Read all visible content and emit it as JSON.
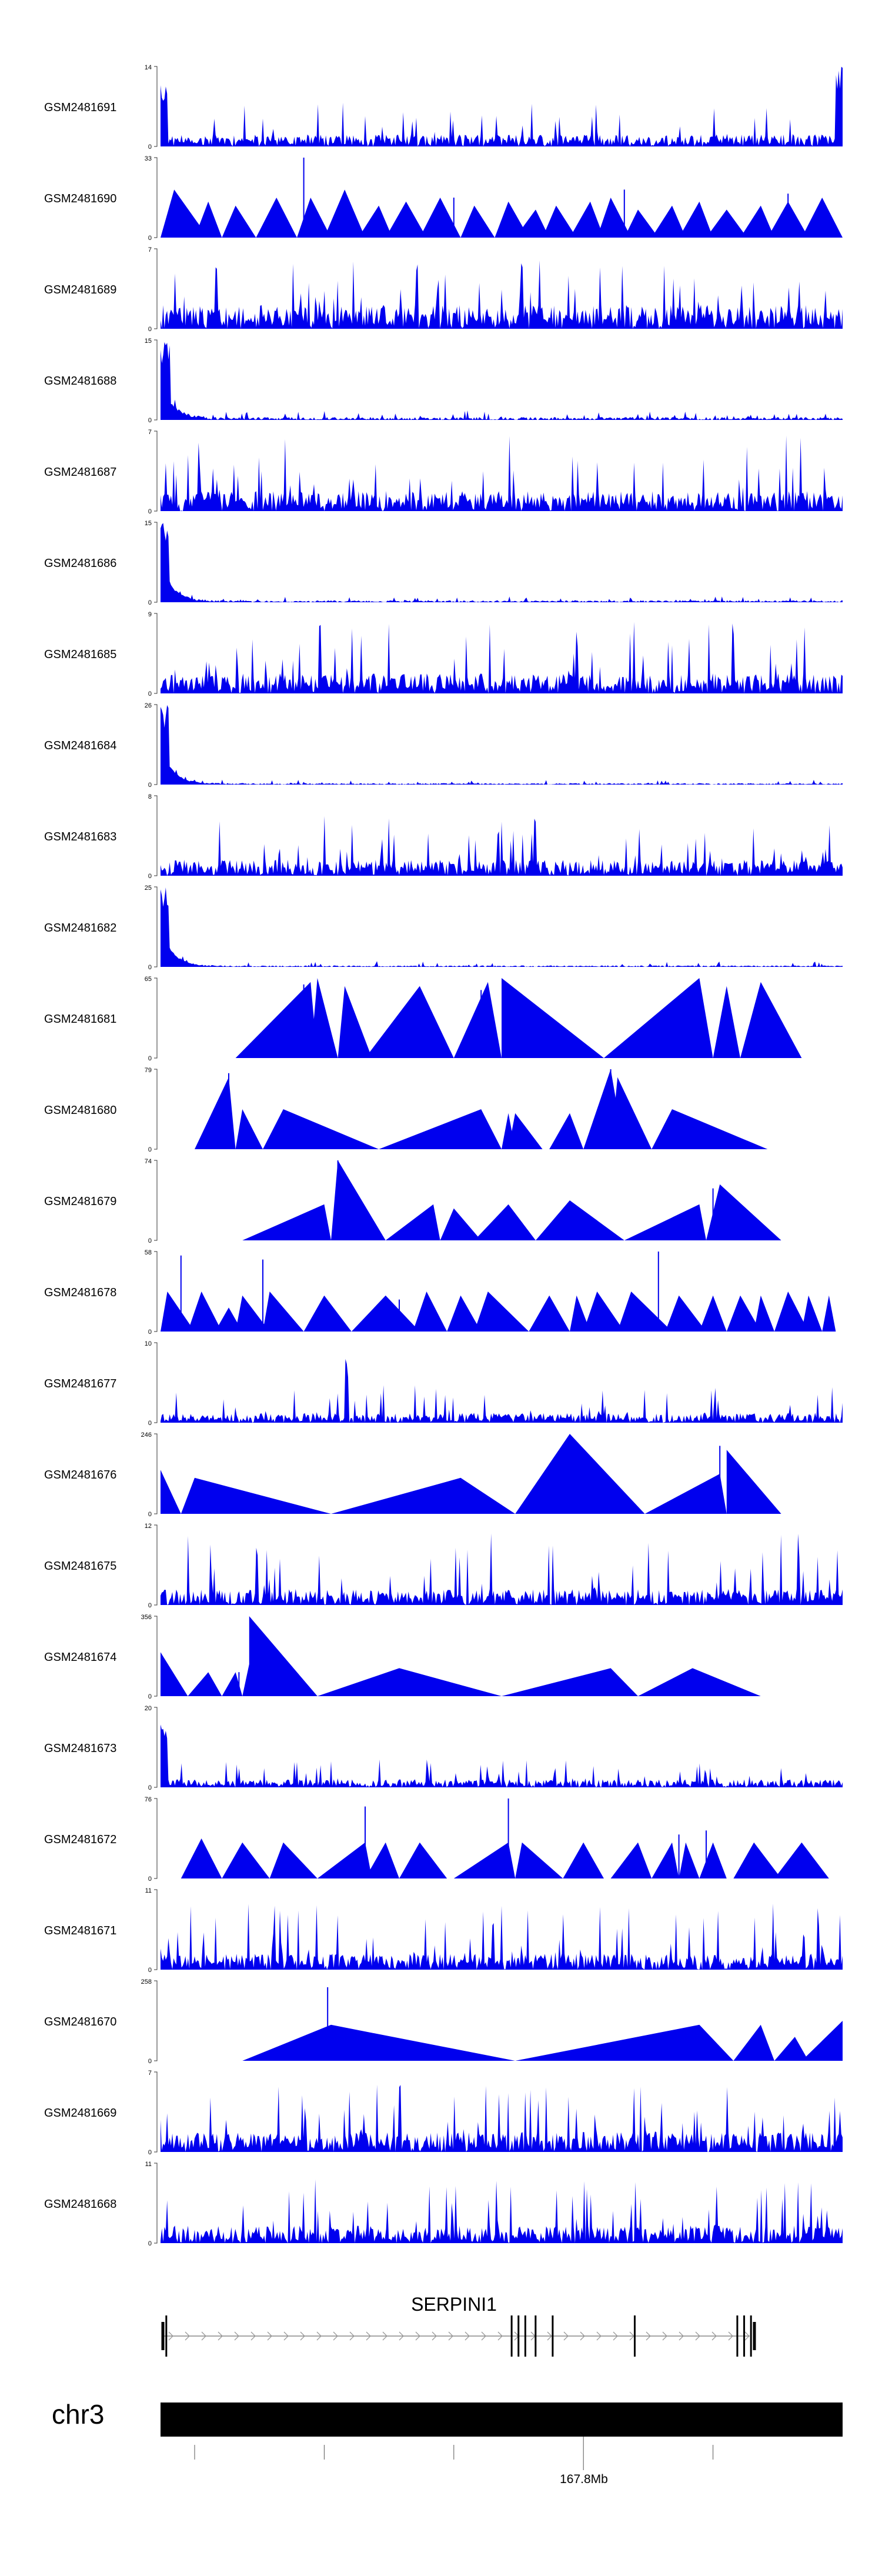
{
  "chart_data": {
    "type": "area",
    "title": "",
    "xlabel": "",
    "ylabel": "",
    "fill_color": "#0000ee",
    "tracks": [
      {
        "name": "GSM2481691",
        "ymax": 14,
        "profile": "dense",
        "seed": 11,
        "base": 0.15,
        "spike": 0.55,
        "edges": [
          [
            0.0,
            0.01,
            0.8
          ],
          [
            0.99,
            1.0,
            1.0
          ]
        ]
      },
      {
        "name": "GSM2481690",
        "ymax": 33,
        "profile": "tri",
        "seed": 12,
        "peaks": [
          [
            0.0,
            0.02,
            0.07,
            0.6
          ],
          [
            0.05,
            0.07,
            0.09,
            0.45
          ],
          [
            0.09,
            0.11,
            0.14,
            0.4
          ],
          [
            0.14,
            0.17,
            0.2,
            0.5
          ],
          [
            0.2,
            0.22,
            0.25,
            0.5
          ],
          [
            0.24,
            0.27,
            0.3,
            0.6
          ],
          [
            0.29,
            0.32,
            0.34,
            0.4
          ],
          [
            0.33,
            0.36,
            0.39,
            0.45
          ],
          [
            0.38,
            0.41,
            0.44,
            0.5
          ],
          [
            0.44,
            0.46,
            0.49,
            0.4
          ],
          [
            0.49,
            0.51,
            0.54,
            0.45
          ],
          [
            0.52,
            0.55,
            0.57,
            0.35
          ],
          [
            0.56,
            0.58,
            0.61,
            0.4
          ],
          [
            0.6,
            0.63,
            0.65,
            0.45
          ],
          [
            0.64,
            0.66,
            0.69,
            0.5
          ],
          [
            0.68,
            0.7,
            0.73,
            0.35
          ],
          [
            0.72,
            0.75,
            0.77,
            0.4
          ],
          [
            0.76,
            0.79,
            0.81,
            0.45
          ],
          [
            0.8,
            0.83,
            0.86,
            0.35
          ],
          [
            0.85,
            0.88,
            0.9,
            0.4
          ],
          [
            0.89,
            0.92,
            0.95,
            0.45
          ],
          [
            0.94,
            0.97,
            1.0,
            0.5
          ]
        ],
        "spikes": [
          [
            0.21,
            1.0
          ],
          [
            0.43,
            0.5
          ],
          [
            0.68,
            0.6
          ],
          [
            0.92,
            0.55
          ]
        ]
      },
      {
        "name": "GSM2481689",
        "ymax": 7,
        "profile": "dense",
        "seed": 13,
        "base": 0.3,
        "spike": 0.9,
        "edges": []
      },
      {
        "name": "GSM2481688",
        "ymax": 15,
        "profile": "decay",
        "seed": 14,
        "base": 0.06,
        "spike": 0.2,
        "edges": [
          [
            0.0,
            0.015,
            1.0
          ]
        ]
      },
      {
        "name": "GSM2481687",
        "ymax": 7,
        "profile": "dense",
        "seed": 15,
        "base": 0.25,
        "spike": 0.95,
        "edges": []
      },
      {
        "name": "GSM2481686",
        "ymax": 15,
        "profile": "decay",
        "seed": 16,
        "base": 0.04,
        "spike": 0.12,
        "edges": [
          [
            0.0,
            0.012,
            1.0
          ]
        ]
      },
      {
        "name": "GSM2481685",
        "ymax": 9,
        "profile": "dense",
        "seed": 17,
        "base": 0.25,
        "spike": 0.9,
        "edges": []
      },
      {
        "name": "GSM2481684",
        "ymax": 26,
        "profile": "decay",
        "seed": 18,
        "base": 0.03,
        "spike": 0.1,
        "edges": [
          [
            0.0,
            0.012,
            1.0
          ]
        ]
      },
      {
        "name": "GSM2481683",
        "ymax": 8,
        "profile": "dense",
        "seed": 19,
        "base": 0.2,
        "spike": 0.75,
        "edges": []
      },
      {
        "name": "GSM2481682",
        "ymax": 25,
        "profile": "decay",
        "seed": 20,
        "base": 0.03,
        "spike": 0.12,
        "edges": [
          [
            0.0,
            0.012,
            1.0
          ]
        ]
      },
      {
        "name": "GSM2481681",
        "ymax": 65,
        "profile": "tri",
        "seed": 21,
        "peaks": [
          [
            0.11,
            0.22,
            0.23,
            0.95
          ],
          [
            0.22,
            0.23,
            0.26,
            1.0
          ],
          [
            0.26,
            0.27,
            0.31,
            0.9
          ],
          [
            0.3,
            0.38,
            0.43,
            0.9
          ],
          [
            0.43,
            0.48,
            0.5,
            0.95
          ],
          [
            0.5,
            0.5,
            0.65,
            1.0
          ],
          [
            0.65,
            0.79,
            0.81,
            1.0
          ],
          [
            0.81,
            0.83,
            0.85,
            0.9
          ],
          [
            0.85,
            0.88,
            0.94,
            0.95
          ]
        ],
        "spikes": [
          [
            0.21,
            0.92
          ],
          [
            0.47,
            0.85
          ]
        ]
      },
      {
        "name": "GSM2481680",
        "ymax": 79,
        "profile": "tri",
        "seed": 22,
        "peaks": [
          [
            0.05,
            0.1,
            0.11,
            0.9
          ],
          [
            0.11,
            0.12,
            0.15,
            0.5
          ],
          [
            0.15,
            0.18,
            0.32,
            0.5
          ],
          [
            0.32,
            0.47,
            0.5,
            0.5
          ],
          [
            0.5,
            0.51,
            0.52,
            0.45
          ],
          [
            0.51,
            0.52,
            0.56,
            0.45
          ],
          [
            0.57,
            0.6,
            0.62,
            0.45
          ],
          [
            0.62,
            0.66,
            0.68,
            1.0
          ],
          [
            0.66,
            0.67,
            0.72,
            0.9
          ],
          [
            0.72,
            0.75,
            0.89,
            0.5
          ]
        ],
        "spikes": [
          [
            0.1,
            0.95
          ],
          [
            0.66,
            1.0
          ]
        ]
      },
      {
        "name": "GSM2481679",
        "ymax": 74,
        "profile": "tri",
        "seed": 23,
        "peaks": [
          [
            0.12,
            0.24,
            0.25,
            0.45
          ],
          [
            0.25,
            0.26,
            0.33,
            1.0
          ],
          [
            0.33,
            0.4,
            0.41,
            0.45
          ],
          [
            0.41,
            0.43,
            0.47,
            0.4
          ],
          [
            0.46,
            0.51,
            0.55,
            0.45
          ],
          [
            0.55,
            0.6,
            0.68,
            0.5
          ],
          [
            0.68,
            0.79,
            0.8,
            0.45
          ],
          [
            0.8,
            0.82,
            0.91,
            0.7
          ]
        ],
        "spikes": [
          [
            0.26,
            1.0
          ],
          [
            0.81,
            0.65
          ]
        ]
      },
      {
        "name": "GSM2481678",
        "ymax": 58,
        "profile": "tri",
        "seed": 24,
        "peaks": [
          [
            0.0,
            0.01,
            0.05,
            0.5
          ],
          [
            0.04,
            0.06,
            0.09,
            0.5
          ],
          [
            0.08,
            0.1,
            0.12,
            0.3
          ],
          [
            0.11,
            0.12,
            0.16,
            0.45
          ],
          [
            0.15,
            0.16,
            0.21,
            0.5
          ],
          [
            0.21,
            0.24,
            0.28,
            0.45
          ],
          [
            0.28,
            0.33,
            0.38,
            0.45
          ],
          [
            0.37,
            0.39,
            0.42,
            0.5
          ],
          [
            0.42,
            0.44,
            0.47,
            0.45
          ],
          [
            0.46,
            0.48,
            0.54,
            0.5
          ],
          [
            0.54,
            0.57,
            0.6,
            0.45
          ],
          [
            0.6,
            0.61,
            0.63,
            0.45
          ],
          [
            0.62,
            0.64,
            0.68,
            0.5
          ],
          [
            0.67,
            0.69,
            0.75,
            0.5
          ],
          [
            0.74,
            0.76,
            0.8,
            0.45
          ],
          [
            0.79,
            0.81,
            0.83,
            0.45
          ],
          [
            0.83,
            0.85,
            0.88,
            0.45
          ],
          [
            0.87,
            0.88,
            0.9,
            0.45
          ],
          [
            0.9,
            0.92,
            0.95,
            0.5
          ],
          [
            0.94,
            0.95,
            0.97,
            0.45
          ],
          [
            0.97,
            0.98,
            0.99,
            0.45
          ]
        ],
        "spikes": [
          [
            0.03,
            0.95
          ],
          [
            0.15,
            0.9
          ],
          [
            0.35,
            0.4
          ],
          [
            0.73,
            1.0
          ]
        ]
      },
      {
        "name": "GSM2481677",
        "ymax": 10,
        "profile": "dense",
        "seed": 25,
        "base": 0.12,
        "spike": 0.5,
        "edges": [
          [
            0.27,
            0.275,
            0.8
          ]
        ]
      },
      {
        "name": "GSM2481676",
        "ymax": 246,
        "profile": "tri",
        "seed": 26,
        "peaks": [
          [
            0.0,
            0.0,
            0.03,
            0.55
          ],
          [
            0.03,
            0.05,
            0.25,
            0.45
          ],
          [
            0.25,
            0.44,
            0.52,
            0.45
          ],
          [
            0.52,
            0.6,
            0.71,
            1.0
          ],
          [
            0.71,
            0.82,
            0.83,
            0.5
          ],
          [
            0.83,
            0.83,
            0.91,
            0.8
          ]
        ],
        "spikes": [
          [
            0.82,
            0.85
          ]
        ]
      },
      {
        "name": "GSM2481675",
        "ymax": 12,
        "profile": "dense",
        "seed": 27,
        "base": 0.2,
        "spike": 0.9,
        "edges": []
      },
      {
        "name": "GSM2481674",
        "ymax": 356,
        "profile": "tri",
        "seed": 28,
        "peaks": [
          [
            0.0,
            0.0,
            0.04,
            0.55
          ],
          [
            0.04,
            0.07,
            0.09,
            0.3
          ],
          [
            0.09,
            0.11,
            0.12,
            0.3
          ],
          [
            0.12,
            0.13,
            0.14,
            0.4
          ],
          [
            0.13,
            0.13,
            0.23,
            1.0
          ],
          [
            0.23,
            0.35,
            0.5,
            0.35
          ],
          [
            0.5,
            0.66,
            0.7,
            0.35
          ],
          [
            0.7,
            0.78,
            0.88,
            0.35
          ]
        ],
        "spikes": [
          [
            0.115,
            0.3
          ]
        ]
      },
      {
        "name": "GSM2481673",
        "ymax": 20,
        "profile": "dense",
        "seed": 29,
        "base": 0.1,
        "spike": 0.35,
        "edges": [
          [
            0.0,
            0.01,
            0.8
          ]
        ]
      },
      {
        "name": "GSM2481672",
        "ymax": 76,
        "profile": "tri",
        "seed": 30,
        "peaks": [
          [
            0.03,
            0.06,
            0.09,
            0.5
          ],
          [
            0.09,
            0.12,
            0.16,
            0.45
          ],
          [
            0.16,
            0.18,
            0.23,
            0.45
          ],
          [
            0.23,
            0.3,
            0.31,
            0.45
          ],
          [
            0.3,
            0.33,
            0.35,
            0.45
          ],
          [
            0.35,
            0.38,
            0.42,
            0.45
          ],
          [
            0.43,
            0.51,
            0.52,
            0.45
          ],
          [
            0.52,
            0.53,
            0.59,
            0.45
          ],
          [
            0.59,
            0.62,
            0.65,
            0.45
          ],
          [
            0.66,
            0.7,
            0.72,
            0.45
          ],
          [
            0.72,
            0.75,
            0.76,
            0.45
          ],
          [
            0.76,
            0.77,
            0.79,
            0.45
          ],
          [
            0.79,
            0.81,
            0.83,
            0.45
          ],
          [
            0.84,
            0.87,
            0.91,
            0.45
          ],
          [
            0.9,
            0.94,
            0.98,
            0.45
          ]
        ],
        "spikes": [
          [
            0.3,
            0.9
          ],
          [
            0.51,
            1.0
          ],
          [
            0.76,
            0.55
          ],
          [
            0.8,
            0.6
          ]
        ]
      },
      {
        "name": "GSM2481671",
        "ymax": 11,
        "profile": "dense",
        "seed": 31,
        "base": 0.2,
        "spike": 0.85,
        "edges": []
      },
      {
        "name": "GSM2481670",
        "ymax": 258,
        "profile": "tri",
        "seed": 32,
        "peaks": [
          [
            0.12,
            0.25,
            0.52,
            0.45
          ],
          [
            0.52,
            0.79,
            0.84,
            0.45
          ],
          [
            0.84,
            0.88,
            0.9,
            0.45
          ],
          [
            0.9,
            0.93,
            0.95,
            0.3
          ],
          [
            0.94,
            1.0,
            1.0,
            0.5
          ]
        ],
        "spikes": [
          [
            0.245,
            0.92
          ]
        ]
      },
      {
        "name": "GSM2481669",
        "ymax": 7,
        "profile": "dense",
        "seed": 33,
        "base": 0.25,
        "spike": 0.85,
        "edges": []
      },
      {
        "name": "GSM2481668",
        "ymax": 11,
        "profile": "dense",
        "seed": 34,
        "base": 0.22,
        "spike": 0.8,
        "edges": []
      }
    ],
    "gene": {
      "name": "SERPINI1",
      "exons": [
        0.0,
        0.005,
        0.51,
        0.52,
        0.53,
        0.545,
        0.57,
        0.69,
        0.84,
        0.85,
        0.86,
        0.865
      ],
      "thick_exons": [
        0.0,
        0.865
      ]
    },
    "chromosome": "chr3",
    "axis": {
      "tick_positions": [
        0.05,
        0.24,
        0.43,
        0.62,
        0.81
      ],
      "labeled_tick_position": 0.62,
      "labeled_tick": "167.8Mb"
    }
  }
}
